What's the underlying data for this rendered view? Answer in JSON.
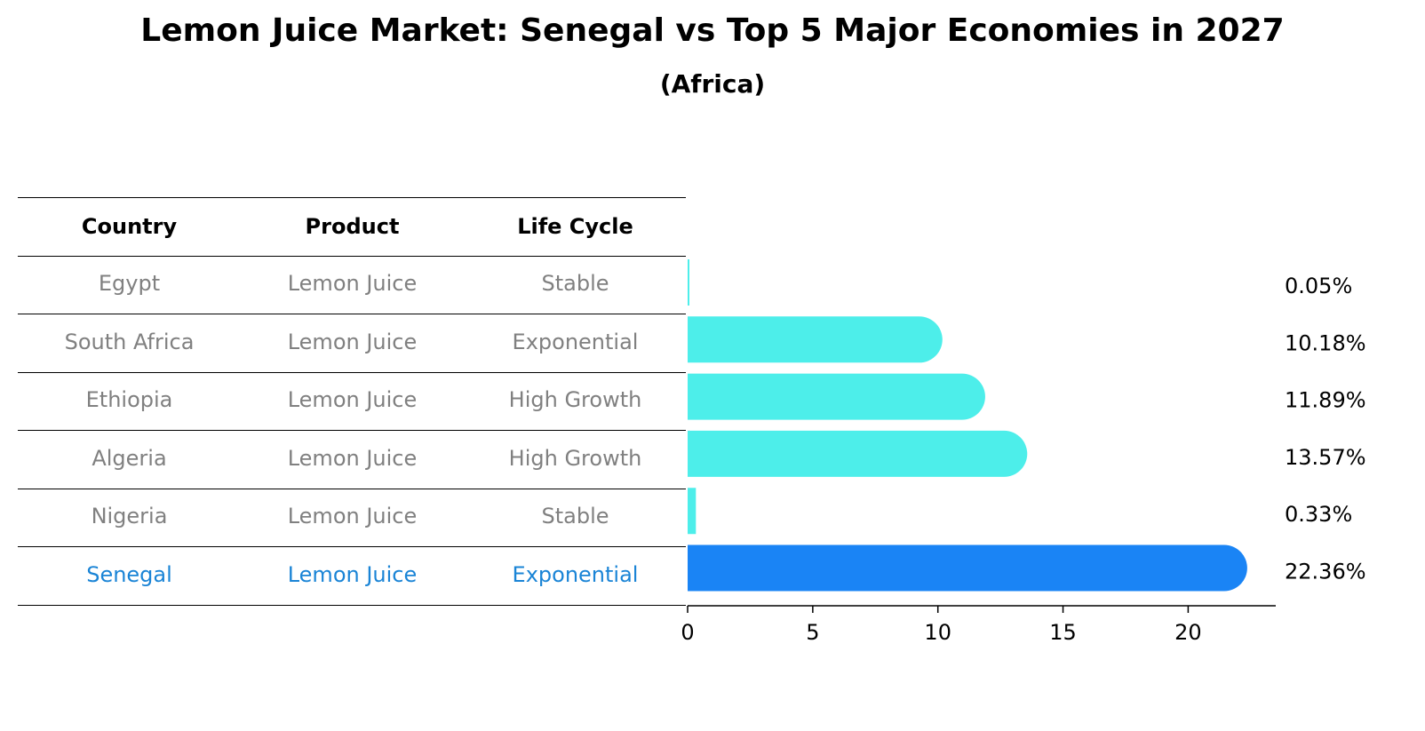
{
  "title": "Lemon Juice Market: Senegal vs Top 5 Major Economies in 2027",
  "subtitle": "(Africa)",
  "table": {
    "headers": [
      "Country",
      "Product",
      "Life Cycle"
    ],
    "rows": [
      [
        "Egypt",
        "Lemon Juice",
        "Stable"
      ],
      [
        "South Africa",
        "Lemon Juice",
        "Exponential"
      ],
      [
        "Ethiopia",
        "Lemon Juice",
        "High Growth"
      ],
      [
        "Algeria",
        "Lemon Juice",
        "High Growth"
      ],
      [
        "Nigeria",
        "Lemon Juice",
        "Stable"
      ],
      [
        "Senegal",
        "Lemon Juice",
        "Exponential"
      ]
    ]
  },
  "colors": {
    "bar": "#4deeea",
    "highlight": "#1a84f5",
    "row_text": "#808080",
    "highlight_text": "#1a84d6"
  },
  "chart_data": {
    "type": "bar",
    "orientation": "horizontal",
    "categories": [
      "Egypt",
      "South Africa",
      "Ethiopia",
      "Algeria",
      "Nigeria",
      "Senegal"
    ],
    "values": [
      0.05,
      10.18,
      11.89,
      13.57,
      0.33,
      22.36
    ],
    "value_labels": [
      "0.05%",
      "10.18%",
      "11.89%",
      "13.57%",
      "0.33%",
      "22.36%"
    ],
    "highlight": "Senegal",
    "xticks": [
      "0",
      "5",
      "10",
      "15",
      "20"
    ],
    "xlim": [
      0,
      23.5
    ],
    "grid": false
  }
}
